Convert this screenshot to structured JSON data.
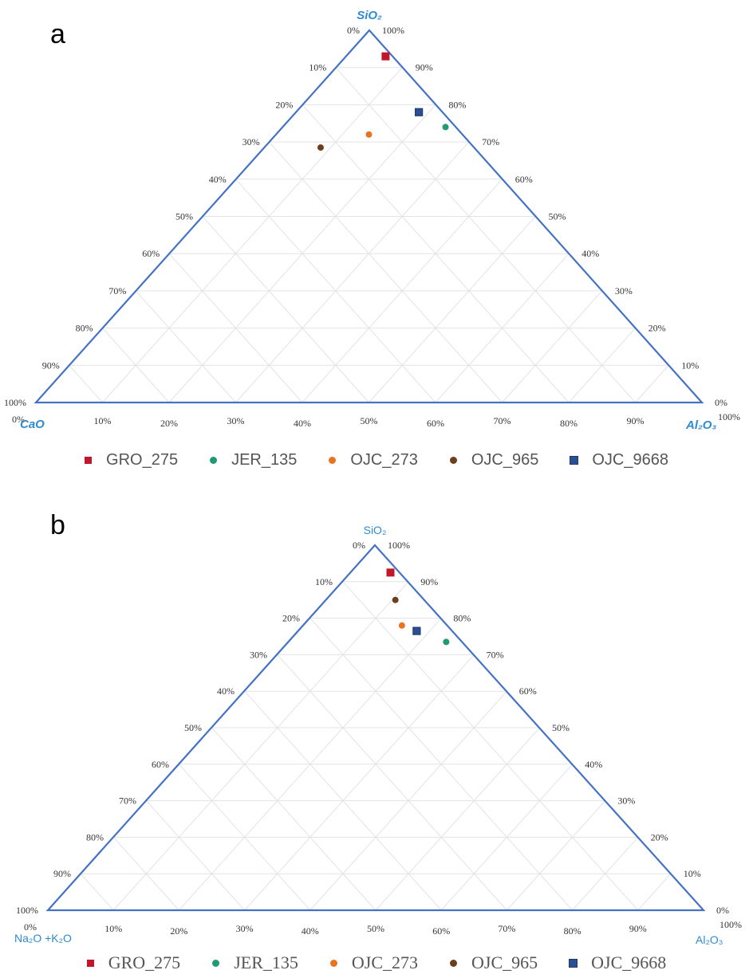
{
  "panels": {
    "a": {
      "letter": "a"
    },
    "b": {
      "letter": "b"
    }
  },
  "chart_data": [
    {
      "type": "scatter",
      "subtype": "ternary",
      "panel": "a",
      "title": "",
      "axes": {
        "top": "SiO2",
        "left": "CaO",
        "right": "Al2O3"
      },
      "tick_labels": [
        "0%",
        "10%",
        "20%",
        "30%",
        "40%",
        "50%",
        "60%",
        "70%",
        "80%",
        "90%",
        "100%"
      ],
      "grid": true,
      "legend_position": "bottom",
      "series": [
        {
          "name": "GRO_275",
          "color": "#c0182a",
          "marker": "square",
          "SiO2": 0.93,
          "Al2O3": 0.06,
          "CaO": 0.01
        },
        {
          "name": "JER_135",
          "color": "#1f9a72",
          "marker": "circle",
          "SiO2": 0.74,
          "Al2O3": 0.245,
          "CaO": 0.015
        },
        {
          "name": "OJC_273",
          "color": "#e8741e",
          "marker": "circle",
          "SiO2": 0.72,
          "Al2O3": 0.14,
          "CaO": 0.14
        },
        {
          "name": "OJC_965",
          "color": "#6b3f1e",
          "marker": "circle",
          "SiO2": 0.685,
          "Al2O3": 0.085,
          "CaO": 0.23
        },
        {
          "name": "OJC_9668",
          "color": "#2b4f93",
          "marker": "square-outlined",
          "SiO2": 0.78,
          "Al2O3": 0.185,
          "CaO": 0.035
        }
      ]
    },
    {
      "type": "scatter",
      "subtype": "ternary",
      "panel": "b",
      "title": "",
      "axes": {
        "top": "SiO2",
        "left": "Na2O +K2O",
        "right": "Al2O3"
      },
      "tick_labels": [
        "0%",
        "10%",
        "20%",
        "30%",
        "40%",
        "50%",
        "60%",
        "70%",
        "80%",
        "90%",
        "100%"
      ],
      "grid": true,
      "legend_position": "bottom",
      "series": [
        {
          "name": "GRO_275",
          "color": "#c0182a",
          "marker": "square",
          "SiO2": 0.925,
          "Al2O3": 0.06,
          "Na2O_K2O": 0.015
        },
        {
          "name": "JER_135",
          "color": "#1f9a72",
          "marker": "circle",
          "SiO2": 0.735,
          "Al2O3": 0.24,
          "Na2O_K2O": 0.025
        },
        {
          "name": "OJC_273",
          "color": "#e8741e",
          "marker": "circle",
          "SiO2": 0.78,
          "Al2O3": 0.15,
          "Na2O_K2O": 0.07
        },
        {
          "name": "OJC_965",
          "color": "#6b3f1e",
          "marker": "circle",
          "SiO2": 0.85,
          "Al2O3": 0.105,
          "Na2O_K2O": 0.045
        },
        {
          "name": "OJC_9668",
          "color": "#2b4f93",
          "marker": "square-outlined",
          "SiO2": 0.765,
          "Al2O3": 0.18,
          "Na2O_K2O": 0.055
        }
      ]
    }
  ],
  "legend": [
    {
      "label": "GRO_275",
      "color": "#c0182a",
      "shape": "square"
    },
    {
      "label": "JER_135",
      "color": "#1f9a72",
      "shape": "circle"
    },
    {
      "label": "OJC_273",
      "color": "#e8741e",
      "shape": "circle"
    },
    {
      "label": "OJC_965",
      "color": "#6b3f1e",
      "shape": "circle"
    },
    {
      "label": "OJC_9668",
      "color": "#2b4f93",
      "shape": "box"
    }
  ],
  "colors": {
    "axis": "#4472c4",
    "axis_title": "#2e8bd0",
    "grid": "#e3e3e3"
  }
}
